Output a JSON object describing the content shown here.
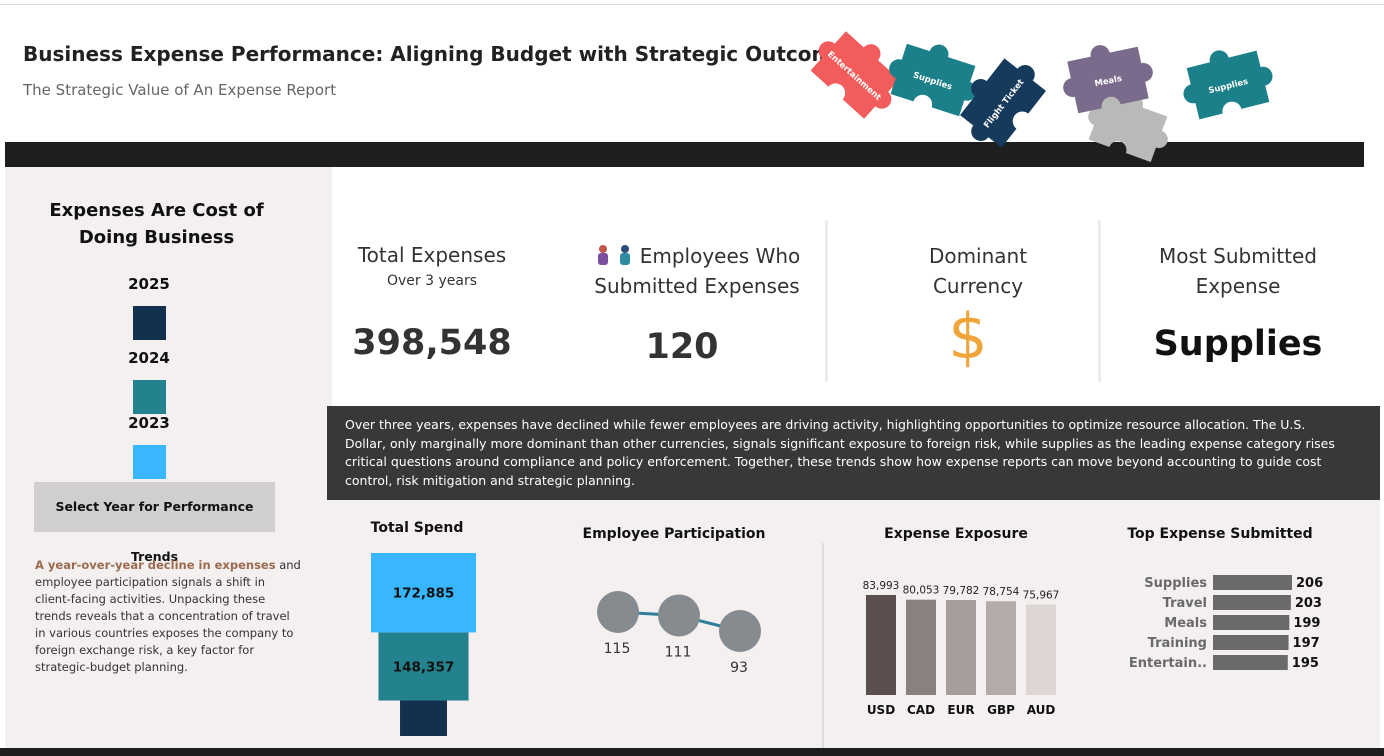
{
  "header": {
    "title": "Business Expense Performance: Aligning Budget with Strategic Outcomes",
    "subtitle": "The Strategic Value of An Expense Report",
    "puzzle_pieces": [
      "Entertainment",
      "Supplies",
      "Flight Ticket",
      "Meals",
      "Supplies"
    ]
  },
  "sidebar": {
    "heading": "Expenses Are Cost of Doing Business",
    "legend": [
      {
        "year": "2025",
        "color": "#14304f"
      },
      {
        "year": "2024",
        "color": "#24828f"
      },
      {
        "year": "2023",
        "color": "#38b6ff"
      }
    ],
    "button": "Select Year for Performance Trends",
    "note_highlight": "A year-over-year decline in expenses",
    "note_text": " and employee participation signals a shift in client-facing activities. Unpacking these trends reveals that a concentration of travel in various countries exposes the company to foreign exchange risk, a key factor for strategic-budget planning."
  },
  "kpis": [
    {
      "title": "Total Expenses",
      "subtitle": "Over 3 years",
      "value": "398,548"
    },
    {
      "title": "Employees Who Submitted Expenses",
      "value": "120"
    },
    {
      "title": "Dominant Currency",
      "value": "$"
    },
    {
      "title": "Most Submitted Expense",
      "value": "Supplies"
    }
  ],
  "summary": "Over three years, expenses have declined while fewer employees are driving activity, highlighting opportunities to optimize resource allocation. The U.S. Dollar, only marginally more dominant than other currencies, signals significant exposure to foreign risk, while supplies as the leading expense category rises critical questions around compliance and policy enforcement. Together, these trends show how expense reports can move beyond accounting to guide cost control, risk mitigation and strategic planning.",
  "charts": {
    "total_spend": {
      "title": "Total Spend",
      "values": [
        77306,
        148357,
        172885
      ],
      "value_labels": [
        null,
        "148,357",
        "172,885"
      ]
    },
    "participation": {
      "title": "Employee Participation",
      "values": [
        115,
        111,
        93
      ],
      "color": "#2e7d9a",
      "point_color": "#868b90"
    },
    "exposure": {
      "title": "Expense Exposure",
      "categories": [
        "USD",
        "CAD",
        "EUR",
        "GBP",
        "AUD"
      ],
      "values": [
        83993,
        80053,
        79782,
        78754,
        75967
      ],
      "value_labels": [
        "83,993",
        "80,053",
        "79,782",
        "78,754",
        "75,967"
      ],
      "colors": [
        "#5b504d",
        "#8a807d",
        "#a69e9b",
        "#b3aba8",
        "#ddd6d3"
      ]
    },
    "top_expense": {
      "title": "Top Expense Submitted",
      "categories": [
        "Supplies",
        "Travel",
        "Meals",
        "Training",
        "Entertain.."
      ],
      "values": [
        206,
        203,
        199,
        197,
        195
      ],
      "color": "#6a6a6a"
    }
  }
}
